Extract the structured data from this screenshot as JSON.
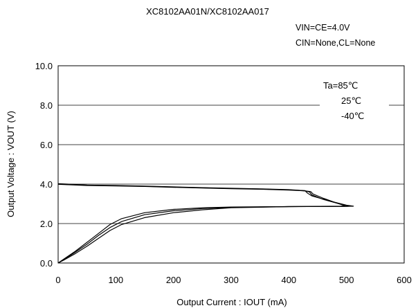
{
  "chart_data": {
    "type": "line",
    "title": "XC8102AA01N/XC8102AA017",
    "conditions": [
      "VIN=CE=4.0V",
      "CIN=None,CL=None"
    ],
    "xlabel": "Output Current : IOUT (mA)",
    "ylabel": "Output Voltage : VOUT (V)",
    "xlim": [
      0,
      600
    ],
    "ylim": [
      0,
      10
    ],
    "x_ticks": [
      "0",
      "100",
      "200",
      "300",
      "400",
      "500",
      "600"
    ],
    "y_ticks": [
      "0.0",
      "2.0",
      "4.0",
      "6.0",
      "8.0",
      "10.0"
    ],
    "grid": "horizontal",
    "legend_position": "top-right",
    "legend_entries": [
      "Ta=85℃",
      "25℃",
      "-40℃"
    ],
    "series": [
      {
        "name": "Ta=85℃",
        "x": [
          0,
          50,
          100,
          150,
          200,
          250,
          300,
          350,
          400,
          412,
          420,
          428,
          432,
          440,
          470,
          500,
          512,
          500,
          400,
          300,
          250,
          200,
          150,
          110,
          90,
          70,
          50,
          30,
          10,
          0
        ],
        "y": [
          4.02,
          3.95,
          3.93,
          3.9,
          3.86,
          3.82,
          3.79,
          3.76,
          3.72,
          3.7,
          3.68,
          3.67,
          3.55,
          3.4,
          3.15,
          2.93,
          2.88,
          2.87,
          2.86,
          2.84,
          2.8,
          2.72,
          2.55,
          2.25,
          1.95,
          1.5,
          1.05,
          0.6,
          0.2,
          0
        ]
      },
      {
        "name": "25℃",
        "x": [
          0,
          50,
          100,
          150,
          200,
          250,
          300,
          350,
          400,
          420,
          428,
          436,
          440,
          460,
          490,
          505,
          500,
          400,
          300,
          250,
          200,
          150,
          110,
          90,
          70,
          50,
          30,
          10,
          0
        ],
        "y": [
          4.0,
          3.94,
          3.92,
          3.89,
          3.85,
          3.81,
          3.78,
          3.75,
          3.71,
          3.68,
          3.66,
          3.6,
          3.45,
          3.22,
          2.98,
          2.88,
          2.87,
          2.86,
          2.82,
          2.76,
          2.65,
          2.45,
          2.1,
          1.8,
          1.4,
          0.95,
          0.55,
          0.18,
          0
        ]
      },
      {
        "name": "-40℃",
        "x": [
          0,
          50,
          100,
          150,
          200,
          250,
          300,
          350,
          400,
          420,
          430,
          438,
          442,
          460,
          485,
          498,
          490,
          400,
          300,
          250,
          200,
          150,
          110,
          90,
          70,
          50,
          30,
          10,
          0
        ],
        "y": [
          3.99,
          3.93,
          3.91,
          3.88,
          3.84,
          3.8,
          3.77,
          3.74,
          3.7,
          3.67,
          3.65,
          3.62,
          3.5,
          3.28,
          3.02,
          2.9,
          2.88,
          2.86,
          2.8,
          2.7,
          2.55,
          2.3,
          1.95,
          1.65,
          1.25,
          0.85,
          0.48,
          0.15,
          0
        ]
      }
    ]
  }
}
